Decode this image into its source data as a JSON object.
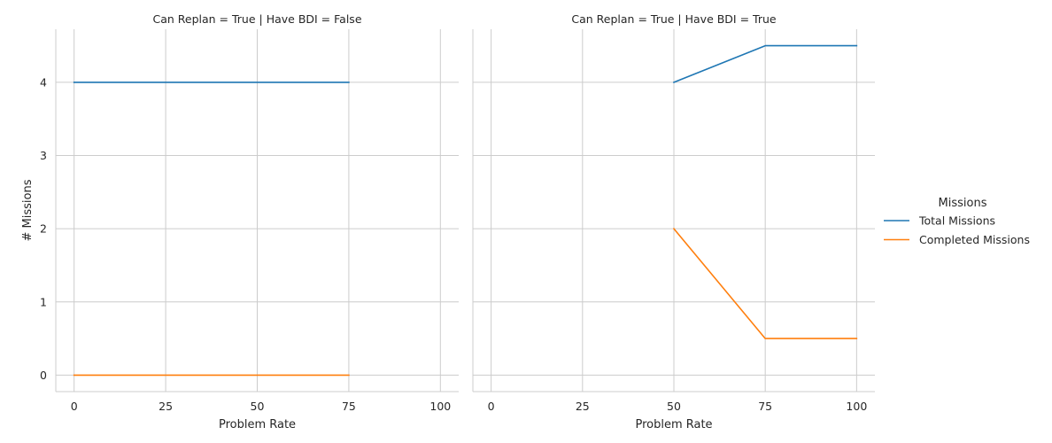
{
  "chart_data": {
    "type": "line",
    "ylabel": "# Missions",
    "xlabel": "Problem Rate",
    "xlim": [
      -5,
      105
    ],
    "ylim": [
      -0.225,
      4.725
    ],
    "xticks": [
      "0",
      "25",
      "50",
      "75",
      "100"
    ],
    "yticks": [
      "0",
      "1",
      "2",
      "3",
      "4"
    ],
    "grid": true,
    "legend": {
      "title": "Missions",
      "placement": "right",
      "entries": [
        {
          "name": "Total Missions",
          "color": "#1f77b4"
        },
        {
          "name": "Completed Missions",
          "color": "#ff7f0e"
        }
      ]
    },
    "panels": [
      {
        "title": "Can Replan = True | Have BDI = False",
        "series": [
          {
            "name": "Total Missions",
            "color": "#1f77b4",
            "x": [
              0,
              25,
              50,
              75
            ],
            "y": [
              4,
              4,
              4,
              4
            ]
          },
          {
            "name": "Completed Missions",
            "color": "#ff7f0e",
            "x": [
              0,
              25,
              50,
              75
            ],
            "y": [
              0,
              0,
              0,
              0
            ]
          }
        ]
      },
      {
        "title": "Can Replan = True | Have BDI = True",
        "series": [
          {
            "name": "Total Missions",
            "color": "#1f77b4",
            "x": [
              50,
              75,
              100
            ],
            "y": [
              4,
              4.5,
              4.5
            ]
          },
          {
            "name": "Completed Missions",
            "color": "#ff7f0e",
            "x": [
              50,
              75,
              100
            ],
            "y": [
              2,
              0.5,
              0.5
            ]
          }
        ]
      }
    ]
  }
}
